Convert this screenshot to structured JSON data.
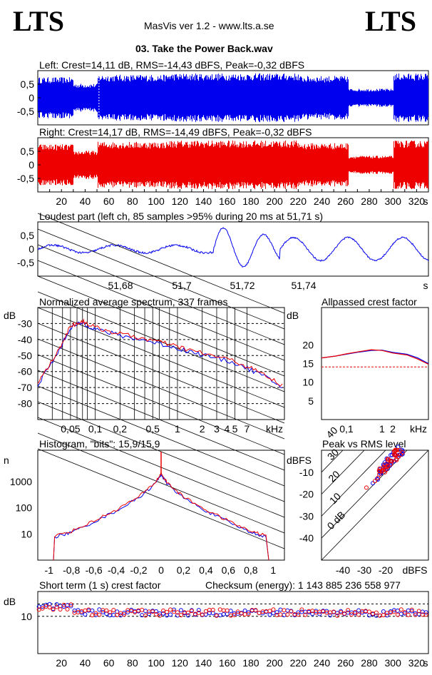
{
  "header": {
    "logo_left": "LTS",
    "logo_right": "LTS",
    "app_info": "MasVis ver 1.2 - www.lts.a.se",
    "file_title": "03. Take the Power Back.wav"
  },
  "colors": {
    "left": "#0000ee",
    "right": "#ee0000"
  },
  "chart_data": [
    {
      "type": "area",
      "title": "Left: Crest=14,11 dB, RMS=-14,43 dBFS, Peak=-0,32 dBFS",
      "y_ticks": [
        "0,5",
        "0",
        "-0,5"
      ],
      "series": [
        {
          "name": "Left",
          "color": "#0000ee"
        }
      ],
      "xlim": [
        0,
        330
      ],
      "ylim": [
        -1,
        1
      ],
      "envelope_segments": [
        {
          "from": 0,
          "to": 30,
          "amplitude": 0.8
        },
        {
          "from": 30,
          "to": 50,
          "amplitude": 0.55
        },
        {
          "from": 50,
          "to": 110,
          "amplitude": 0.9
        },
        {
          "from": 110,
          "to": 220,
          "amplitude": 0.95
        },
        {
          "from": 220,
          "to": 262,
          "amplitude": 0.85
        },
        {
          "from": 262,
          "to": 300,
          "amplitude": 0.35
        },
        {
          "from": 300,
          "to": 330,
          "amplitude": 0.95
        }
      ],
      "marker_x": 51.71
    },
    {
      "type": "area",
      "title": "Right: Crest=14,17 dB, RMS=-14,49 dBFS, Peak=-0,32 dBFS",
      "y_ticks": [
        "0,5",
        "0",
        "-0,5"
      ],
      "series": [
        {
          "name": "Right",
          "color": "#ee0000"
        }
      ],
      "xlim": [
        0,
        330
      ],
      "ylim": [
        -1,
        1
      ],
      "x_ticks": [
        "20",
        "40",
        "60",
        "80",
        "100",
        "120",
        "140",
        "160",
        "180",
        "200",
        "220",
        "240",
        "260",
        "280",
        "300",
        "320",
        "s"
      ]
    },
    {
      "type": "line",
      "title": "Loudest part (left  ch, 85 samples >95% during 20 ms at 51,71 s)",
      "y_ticks": [
        "0,5",
        "0",
        "-0,5"
      ],
      "x_ticks": [
        "51,68",
        "51,7",
        "51,72",
        "51,74",
        "s"
      ],
      "xlim": [
        51.665,
        51.76
      ],
      "ylim": [
        -1,
        1
      ]
    },
    {
      "type": "line",
      "title": "Normalized average spectrum, 337 frames",
      "ylabel": "dB",
      "y_ticks": [
        "-30",
        "-40",
        "-50",
        "-60",
        "-70",
        "-80"
      ],
      "x_ticks": [
        "0,05",
        "0,1",
        "0,2",
        "0,5",
        "1",
        "2",
        "3",
        "4",
        "5",
        "7",
        "kHz"
      ],
      "series": [
        {
          "name": "Left",
          "color": "#0000ee"
        },
        {
          "name": "Right",
          "color": "#ee0000"
        }
      ],
      "x": [
        0.02,
        0.035,
        0.05,
        0.07,
        0.1,
        0.2,
        0.5,
        1,
        2,
        5,
        10,
        20
      ],
      "y": [
        -68,
        -48,
        -32,
        -29,
        -33,
        -37,
        -41,
        -45,
        -49,
        -54,
        -61,
        -70
      ]
    },
    {
      "type": "line",
      "title": "Allpassed crest factor",
      "ylabel": "dB",
      "y_ticks": [
        "20",
        "15",
        "10",
        "5"
      ],
      "x_ticks": [
        "0,1",
        "1",
        "2",
        "kHz"
      ],
      "reference_line": 14.1,
      "x": [
        0.02,
        0.05,
        0.1,
        0.2,
        0.5,
        1,
        2,
        5,
        10,
        20
      ],
      "series": [
        {
          "name": "Left",
          "color": "#0000ee",
          "values": [
            16.5,
            17,
            17.5,
            18,
            18.5,
            18.6,
            18,
            17.5,
            16.5,
            15
          ]
        },
        {
          "name": "Right",
          "color": "#ee0000",
          "values": [
            16.5,
            17,
            17.6,
            18.1,
            18.7,
            18.5,
            17.8,
            17.3,
            16.2,
            14.8
          ]
        }
      ]
    },
    {
      "type": "line",
      "title": "Histogram, \"bits\": 15,9/15,9",
      "ylabel": "n",
      "y_ticks": [
        "1000",
        "100",
        "10"
      ],
      "x_ticks": [
        "-1",
        "-0,8",
        "-0,6",
        "-0,4",
        "-0,2",
        "0",
        "0,2",
        "0,4",
        "0,6",
        "0,8",
        "1"
      ],
      "series": [
        {
          "name": "Left",
          "color": "#0000ee"
        },
        {
          "name": "Right",
          "color": "#ee0000"
        }
      ],
      "x": [
        -0.95,
        -0.8,
        -0.6,
        -0.4,
        -0.2,
        -0.05,
        0,
        0.05,
        0.2,
        0.4,
        0.6,
        0.8,
        0.95
      ],
      "y": [
        8,
        12,
        30,
        80,
        250,
        900,
        2000,
        900,
        250,
        80,
        30,
        12,
        8
      ]
    },
    {
      "type": "scatter",
      "title": "Peak vs RMS level",
      "ylabel": "dBFS",
      "xlabel": "dBFS",
      "y_ticks": [
        "-10",
        "-20",
        "-30",
        "-40"
      ],
      "x_ticks": [
        "-40",
        "-30",
        "-20"
      ],
      "diagonal_labels": [
        "40",
        "30",
        "20",
        "10",
        "0 dB"
      ],
      "series": [
        {
          "name": "Left",
          "color": "#0000ee",
          "x": [
            -26,
            -24,
            -22,
            -20,
            -18,
            -16,
            -15,
            -14,
            -13,
            -12
          ],
          "y": [
            -15,
            -13,
            -10,
            -9,
            -7,
            -5,
            -4,
            -3,
            -2,
            -1
          ]
        },
        {
          "name": "Right",
          "color": "#ee0000",
          "x": [
            -29,
            -25,
            -23,
            -21,
            -19,
            -17,
            -15,
            -14,
            -13,
            -12
          ],
          "y": [
            -17,
            -14,
            -11,
            -9,
            -7,
            -5,
            -4,
            -3,
            -2,
            -1
          ]
        }
      ]
    },
    {
      "type": "scatter",
      "title": "Short term (1 s) crest factor",
      "checksum": "Checksum (energy):  1 143 885 236 558 977",
      "ylabel": "dB",
      "y_ticks": [
        "10"
      ],
      "x_ticks": [
        "20",
        "40",
        "60",
        "80",
        "100",
        "120",
        "140",
        "160",
        "180",
        "200",
        "220",
        "240",
        "260",
        "280",
        "300",
        "320",
        "s"
      ],
      "xlim": [
        0,
        330
      ],
      "typical_range": [
        11,
        14
      ]
    }
  ]
}
